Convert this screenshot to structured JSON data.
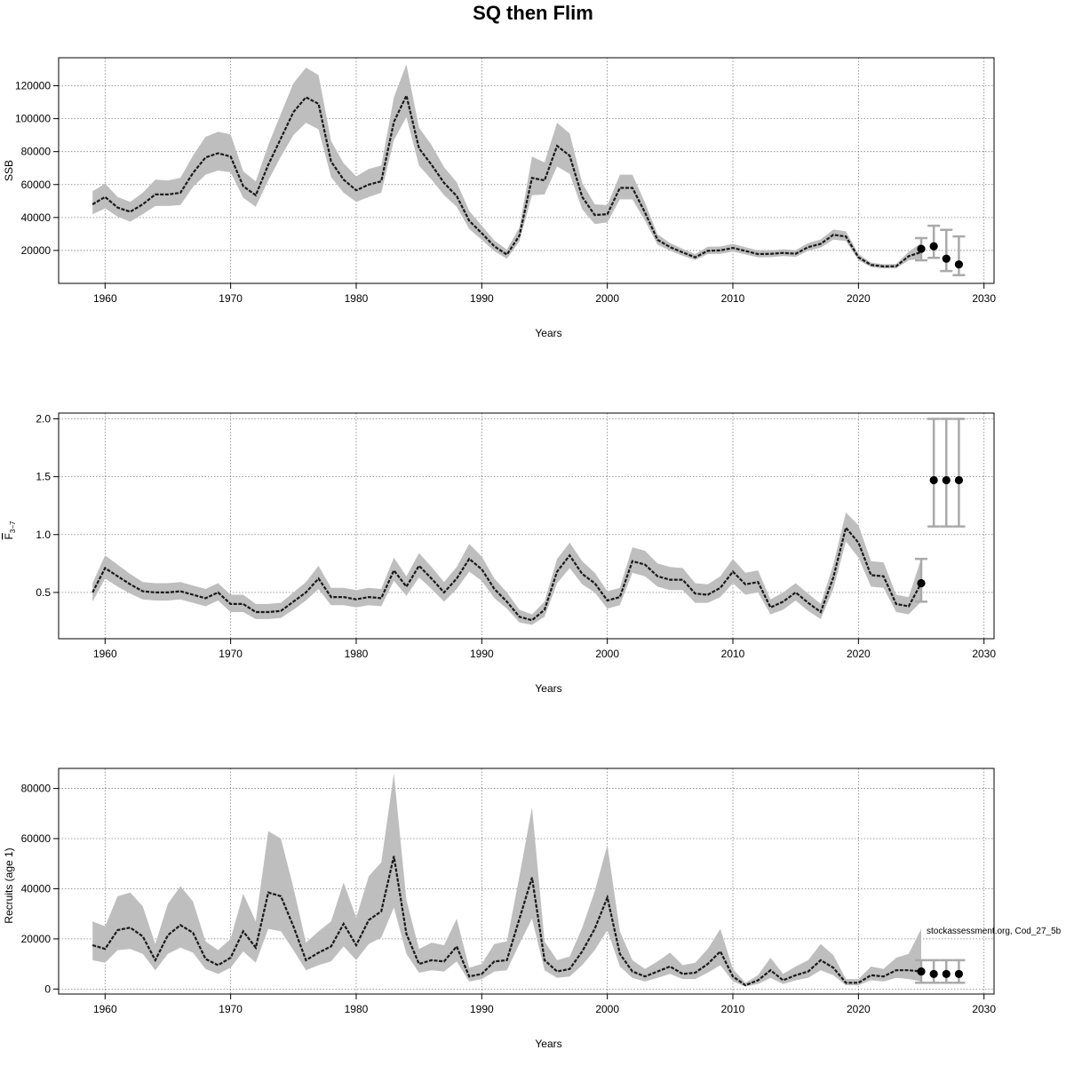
{
  "title": "SQ then Flim",
  "watermark": "stockassessment.org, Cod_27_5b",
  "colors": {
    "band": "#bebebe",
    "line": "#1a1a1a",
    "grid": "#7f7f7f",
    "interval": "#a9a9a9",
    "point": "#000000"
  },
  "chart_data": [
    {
      "type": "line",
      "id": "ssb",
      "xlabel": "Years",
      "ylabel": "SSB",
      "xlim": [
        1956.3,
        2030.8
      ],
      "ylim": [
        0,
        137000
      ],
      "xticks": [
        "1960",
        "1970",
        "1980",
        "1990",
        "2000",
        "2010",
        "2020",
        "2030"
      ],
      "yticks": [
        "20000",
        "40000",
        "60000",
        "80000",
        "100000",
        "120000"
      ],
      "grid": true,
      "x": [
        1959,
        1960,
        1961,
        1962,
        1963,
        1964,
        1965,
        1966,
        1967,
        1968,
        1969,
        1970,
        1971,
        1972,
        1973,
        1974,
        1975,
        1976,
        1977,
        1978,
        1979,
        1980,
        1981,
        1982,
        1983,
        1984,
        1985,
        1986,
        1987,
        1988,
        1989,
        1990,
        1991,
        1992,
        1993,
        1994,
        1995,
        1996,
        1997,
        1998,
        1999,
        2000,
        2001,
        2002,
        2003,
        2004,
        2005,
        2006,
        2007,
        2008,
        2009,
        2010,
        2011,
        2012,
        2013,
        2014,
        2015,
        2016,
        2017,
        2018,
        2019,
        2020,
        2021,
        2022,
        2023,
        2024,
        2025
      ],
      "estimate": [
        48000,
        52500,
        46000,
        43500,
        48000,
        54000,
        54000,
        55000,
        67000,
        76500,
        79000,
        77000,
        59000,
        53500,
        72000,
        88000,
        104000,
        113000,
        109000,
        74000,
        63000,
        56500,
        60000,
        62000,
        98000,
        114000,
        82000,
        72000,
        61000,
        53000,
        38000,
        30500,
        22500,
        17500,
        29000,
        64000,
        62500,
        83500,
        77500,
        52500,
        41500,
        42000,
        58000,
        58000,
        43000,
        26500,
        22000,
        18800,
        15800,
        19800,
        20000,
        21500,
        19700,
        17800,
        17900,
        18500,
        18000,
        22000,
        24000,
        29500,
        28500,
        15800,
        11200,
        10300,
        10400,
        16500,
        19000
      ],
      "lower": [
        42000,
        45500,
        40500,
        37500,
        42000,
        47000,
        47000,
        47500,
        58500,
        66000,
        68500,
        67500,
        52000,
        46500,
        62500,
        77000,
        90000,
        97500,
        93500,
        64500,
        55000,
        49500,
        52500,
        55000,
        87000,
        101000,
        71500,
        63000,
        53500,
        46500,
        33000,
        26500,
        19500,
        15000,
        25500,
        53500,
        54000,
        71000,
        66500,
        45000,
        36000,
        37000,
        51000,
        51000,
        38000,
        23500,
        19800,
        16800,
        14200,
        17800,
        17900,
        19300,
        17600,
        15800,
        15900,
        16600,
        16100,
        19800,
        21700,
        26600,
        25800,
        14000,
        9900,
        9100,
        9100,
        14000,
        15000
      ],
      "upper": [
        56000,
        60500,
        52500,
        49500,
        55000,
        63000,
        62500,
        64000,
        77500,
        89000,
        92000,
        90500,
        68000,
        62000,
        84000,
        103000,
        121500,
        131000,
        126500,
        86500,
        73000,
        65000,
        69500,
        71500,
        113000,
        133000,
        94500,
        84000,
        70500,
        61500,
        44000,
        35000,
        26000,
        20500,
        34000,
        77000,
        73500,
        97500,
        91000,
        61000,
        48000,
        47500,
        66000,
        66000,
        49000,
        29800,
        24500,
        21000,
        17800,
        22200,
        22400,
        24000,
        22000,
        20000,
        20000,
        20700,
        20200,
        24500,
        26700,
        32700,
        31600,
        17800,
        12600,
        11600,
        11700,
        19200,
        24500
      ],
      "projection": {
        "x": [
          2025,
          2026,
          2027,
          2028
        ],
        "values": [
          21000,
          22500,
          15000,
          11500
        ],
        "lower": [
          14000,
          15500,
          7500,
          5000
        ],
        "upper": [
          27500,
          35000,
          32500,
          28500
        ]
      }
    },
    {
      "type": "line",
      "id": "fbar",
      "xlabel": "Years",
      "ylabel": "F",
      "ylabel_sub": "3−7",
      "xlim": [
        1956.3,
        2030.8
      ],
      "ylim": [
        0.1,
        2.05
      ],
      "xticks": [
        "1960",
        "1970",
        "1980",
        "1990",
        "2000",
        "2010",
        "2020",
        "2030"
      ],
      "yticks": [
        "0.5",
        "1.0",
        "1.5",
        "2.0"
      ],
      "grid": true,
      "x": [
        1959,
        1960,
        1961,
        1962,
        1963,
        1964,
        1965,
        1966,
        1967,
        1968,
        1969,
        1970,
        1971,
        1972,
        1973,
        1974,
        1975,
        1976,
        1977,
        1978,
        1979,
        1980,
        1981,
        1982,
        1983,
        1984,
        1985,
        1986,
        1987,
        1988,
        1989,
        1990,
        1991,
        1992,
        1993,
        1994,
        1995,
        1996,
        1997,
        1998,
        1999,
        2000,
        2001,
        2002,
        2003,
        2004,
        2005,
        2006,
        2007,
        2008,
        2009,
        2010,
        2011,
        2012,
        2013,
        2014,
        2015,
        2016,
        2017,
        2018,
        2019,
        2020,
        2021,
        2022,
        2023,
        2024,
        2025
      ],
      "estimate": [
        0.5,
        0.71,
        0.64,
        0.57,
        0.51,
        0.5,
        0.5,
        0.51,
        0.48,
        0.45,
        0.5,
        0.4,
        0.4,
        0.33,
        0.33,
        0.34,
        0.42,
        0.5,
        0.62,
        0.46,
        0.46,
        0.44,
        0.46,
        0.45,
        0.69,
        0.55,
        0.73,
        0.62,
        0.5,
        0.62,
        0.79,
        0.7,
        0.53,
        0.42,
        0.29,
        0.26,
        0.35,
        0.68,
        0.82,
        0.66,
        0.58,
        0.43,
        0.46,
        0.77,
        0.74,
        0.64,
        0.61,
        0.61,
        0.49,
        0.48,
        0.54,
        0.68,
        0.57,
        0.59,
        0.37,
        0.42,
        0.5,
        0.41,
        0.33,
        0.63,
        1.06,
        0.93,
        0.65,
        0.64,
        0.4,
        0.38,
        0.58
      ],
      "lower": [
        0.42,
        0.62,
        0.55,
        0.49,
        0.44,
        0.43,
        0.43,
        0.44,
        0.41,
        0.38,
        0.43,
        0.33,
        0.33,
        0.27,
        0.27,
        0.28,
        0.35,
        0.43,
        0.53,
        0.39,
        0.39,
        0.37,
        0.39,
        0.38,
        0.6,
        0.47,
        0.63,
        0.53,
        0.42,
        0.53,
        0.68,
        0.6,
        0.45,
        0.36,
        0.24,
        0.22,
        0.29,
        0.58,
        0.71,
        0.57,
        0.5,
        0.36,
        0.39,
        0.67,
        0.64,
        0.55,
        0.52,
        0.52,
        0.41,
        0.41,
        0.46,
        0.58,
        0.48,
        0.5,
        0.31,
        0.35,
        0.43,
        0.34,
        0.27,
        0.53,
        0.94,
        0.8,
        0.55,
        0.54,
        0.33,
        0.31,
        0.42
      ],
      "upper": [
        0.58,
        0.82,
        0.74,
        0.66,
        0.59,
        0.58,
        0.58,
        0.59,
        0.56,
        0.53,
        0.58,
        0.48,
        0.48,
        0.4,
        0.4,
        0.41,
        0.5,
        0.59,
        0.73,
        0.54,
        0.54,
        0.52,
        0.54,
        0.53,
        0.8,
        0.64,
        0.84,
        0.72,
        0.59,
        0.72,
        0.92,
        0.81,
        0.62,
        0.5,
        0.35,
        0.31,
        0.42,
        0.79,
        0.93,
        0.77,
        0.67,
        0.51,
        0.54,
        0.89,
        0.86,
        0.75,
        0.72,
        0.71,
        0.58,
        0.57,
        0.64,
        0.79,
        0.67,
        0.69,
        0.44,
        0.5,
        0.58,
        0.49,
        0.4,
        0.74,
        1.19,
        1.08,
        0.77,
        0.76,
        0.48,
        0.46,
        0.79
      ],
      "projection": {
        "x": [
          2025,
          2026,
          2027,
          2028
        ],
        "values": [
          0.58,
          1.47,
          1.47,
          1.47
        ],
        "lower": [
          0.42,
          1.07,
          1.07,
          1.07
        ],
        "upper": [
          0.79,
          2.0,
          2.0,
          2.0
        ]
      }
    },
    {
      "type": "line",
      "id": "recruits",
      "xlabel": "Years",
      "ylabel": "Recruits (age 1)",
      "xlim": [
        1956.3,
        2030.8
      ],
      "ylim": [
        -2000,
        88000
      ],
      "xticks": [
        "1960",
        "1970",
        "1980",
        "1990",
        "2000",
        "2010",
        "2020",
        "2030"
      ],
      "yticks": [
        "0",
        "20000",
        "40000",
        "60000",
        "80000"
      ],
      "grid": true,
      "x": [
        1959,
        1960,
        1961,
        1962,
        1963,
        1964,
        1965,
        1966,
        1967,
        1968,
        1969,
        1970,
        1971,
        1972,
        1973,
        1974,
        1975,
        1976,
        1977,
        1978,
        1979,
        1980,
        1981,
        1982,
        1983,
        1984,
        1985,
        1986,
        1987,
        1988,
        1989,
        1990,
        1991,
        1992,
        1993,
        1994,
        1995,
        1996,
        1997,
        1998,
        1999,
        2000,
        2001,
        2002,
        2003,
        2004,
        2005,
        2006,
        2007,
        2008,
        2009,
        2010,
        2011,
        2012,
        2013,
        2014,
        2015,
        2016,
        2017,
        2018,
        2019,
        2020,
        2021,
        2022,
        2023,
        2024,
        2025
      ],
      "estimate": [
        17500,
        16000,
        23500,
        24500,
        21000,
        11500,
        21500,
        25500,
        22500,
        12000,
        9500,
        12500,
        23000,
        16500,
        38500,
        37000,
        25000,
        11500,
        14500,
        17000,
        26000,
        17500,
        27500,
        31000,
        53000,
        22000,
        10000,
        11500,
        11000,
        17000,
        5000,
        6000,
        11000,
        11500,
        28000,
        44500,
        11500,
        7000,
        8000,
        15000,
        24000,
        36500,
        14000,
        7000,
        5000,
        7000,
        9000,
        6000,
        6500,
        10000,
        15000,
        5000,
        1500,
        3500,
        7500,
        3500,
        5500,
        7000,
        11500,
        8500,
        2500,
        2500,
        5500,
        5000,
        7500,
        7500,
        7000
      ],
      "lower": [
        11500,
        10500,
        15500,
        16000,
        14000,
        7500,
        14000,
        16500,
        14500,
        8000,
        6000,
        8500,
        15000,
        10500,
        24000,
        23000,
        15500,
        7500,
        9500,
        11000,
        17000,
        11500,
        18000,
        20500,
        32500,
        14000,
        6500,
        7500,
        7000,
        11000,
        3000,
        4000,
        7000,
        7500,
        18000,
        28000,
        7500,
        4500,
        5000,
        9500,
        15500,
        23500,
        9000,
        4500,
        3000,
        4500,
        6000,
        4000,
        4000,
        6500,
        9500,
        3000,
        1000,
        2000,
        4500,
        2000,
        3500,
        4500,
        7500,
        5500,
        1500,
        1500,
        3500,
        3000,
        4500,
        4000,
        3000
      ],
      "upper": [
        27000,
        25000,
        37000,
        38500,
        33000,
        18000,
        34000,
        41000,
        35000,
        19000,
        15500,
        20000,
        38000,
        27000,
        63000,
        60000,
        40500,
        18500,
        23000,
        27000,
        42500,
        28500,
        45000,
        50500,
        86000,
        35500,
        16000,
        18500,
        17500,
        28000,
        8500,
        10000,
        18000,
        19000,
        45000,
        72500,
        19000,
        11500,
        13000,
        24500,
        39000,
        57500,
        23000,
        11500,
        8000,
        11000,
        14500,
        9500,
        10500,
        16000,
        24000,
        8000,
        2500,
        5500,
        12500,
        6000,
        9000,
        11500,
        18000,
        13500,
        4000,
        4000,
        9000,
        8000,
        12500,
        14000,
        24000
      ],
      "projection": {
        "x": [
          2025,
          2026,
          2027,
          2028
        ],
        "values": [
          7000,
          6000,
          6000,
          6000
        ],
        "lower": [
          2500,
          2500,
          2500,
          2500
        ],
        "upper": [
          11500,
          11500,
          11500,
          11500
        ]
      }
    }
  ]
}
